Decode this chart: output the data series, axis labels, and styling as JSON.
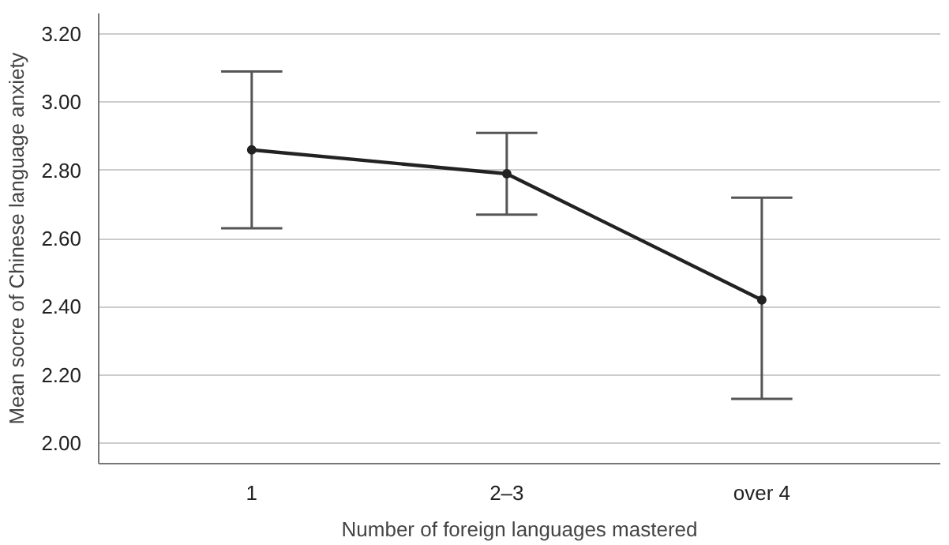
{
  "chart_data": {
    "type": "line",
    "xlabel": "Number of foreign languages mastered",
    "ylabel": "Mean socre of Chinese language anxiety",
    "categories": [
      "1",
      "2–3",
      "over 4"
    ],
    "series": [
      {
        "color": "#222222",
        "values": [
          2.86,
          2.79,
          2.42
        ],
        "errors": [
          [
            2.63,
            3.09
          ],
          [
            2.67,
            2.91
          ],
          [
            2.13,
            2.72
          ]
        ]
      }
    ],
    "ylim": [
      1.94,
      3.26
    ],
    "yticks": [
      {
        "value": 2.0,
        "label": "2.00"
      },
      {
        "value": 2.2,
        "label": "2.20"
      },
      {
        "value": 2.4,
        "label": "2.40"
      },
      {
        "value": 2.6,
        "label": "2.60"
      },
      {
        "value": 2.8,
        "label": "2.80"
      },
      {
        "value": 3.0,
        "label": "3.00"
      },
      {
        "value": 3.2,
        "label": "3.20"
      }
    ],
    "grid": "y",
    "marker": "circle",
    "line_style": "solid"
  }
}
